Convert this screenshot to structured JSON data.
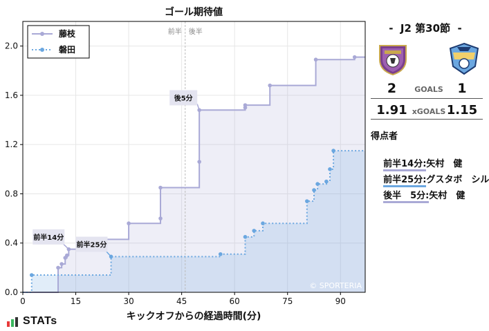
{
  "chart_data": {
    "type": "line",
    "title": "ゴール期待値",
    "xlabel": "キックオフからの経過時間(分)",
    "ylabel": "",
    "xlim": [
      0,
      97
    ],
    "ylim": [
      0,
      2.2
    ],
    "xticks": [
      0,
      15,
      30,
      45,
      60,
      75,
      90
    ],
    "yticks": [
      0.0,
      0.4,
      0.8,
      1.2,
      1.6,
      2.0
    ],
    "xtick_labels": [
      "0",
      "15",
      "30",
      "45",
      "60",
      "75",
      "90"
    ],
    "ytick_labels": [
      "0.0",
      "0.4",
      "0.8",
      "1.2",
      "1.6",
      "2.0"
    ],
    "grid": true,
    "legend_position": "top-left",
    "halftime_labels": {
      "first": "前半",
      "second": "後半",
      "x": 46
    },
    "watermark": "© SPORTERIA",
    "series": [
      {
        "name": "藤枝",
        "color": "#a9a9d6",
        "linestyle": "solid",
        "x": [
          0,
          10,
          11,
          12,
          12.5,
          13,
          21,
          30,
          39,
          39,
          50,
          50,
          63,
          63,
          70,
          83,
          94,
          97
        ],
        "y": [
          0,
          0.2,
          0.23,
          0.28,
          0.3,
          0.35,
          0.43,
          0.56,
          0.6,
          0.85,
          1.06,
          1.48,
          1.5,
          1.52,
          1.68,
          1.89,
          1.91,
          1.91
        ]
      },
      {
        "name": "磐田",
        "color": "#6ba7e0",
        "linestyle": "dotted",
        "x": [
          0,
          2.5,
          25,
          56,
          63,
          65.5,
          68,
          80.5,
          82.5,
          83.5,
          86,
          87,
          88,
          97
        ],
        "y": [
          0,
          0.14,
          0.29,
          0.31,
          0.45,
          0.5,
          0.56,
          0.74,
          0.83,
          0.88,
          0.9,
          1.0,
          1.15,
          1.15
        ]
      }
    ],
    "annotations": [
      {
        "label": "前半14分",
        "x": 13,
        "y": 0.35,
        "tx": 7.3,
        "ty": 0.45,
        "color": "#a9a9d6"
      },
      {
        "label": "前半25分",
        "x": 25,
        "y": 0.29,
        "tx": 19.5,
        "ty": 0.39,
        "color": "#6ba7e0"
      },
      {
        "label": "後5分",
        "x": 50,
        "y": 1.48,
        "tx": 45.5,
        "ty": 1.58,
        "color": "#a9a9d6"
      }
    ]
  },
  "match": {
    "title": "-  J2 第30節  -",
    "home": {
      "crest": "fujieda-crest-icon",
      "goals": "2",
      "xg": "1.91",
      "color": "#a9a9d6"
    },
    "away": {
      "crest": "iwata-crest-icon",
      "goals": "1",
      "xg": "1.15",
      "color": "#6ba7e0"
    },
    "goals_label": "GOALS",
    "xgoals_label": "xGOALS"
  },
  "scorers": {
    "title": "得点者",
    "items": [
      {
        "time": "前半14分:",
        "player": "矢村　健",
        "color": "#a9a9d6"
      },
      {
        "time": "前半25分:",
        "player": "グスタボ　シルバ",
        "color": "#6ba7e0"
      },
      {
        "time": "後半　5分:",
        "player": "矢村　健",
        "color": "#a9a9d6"
      }
    ]
  },
  "brand": {
    "name": "STATs",
    "icon": "bar-chart-icon",
    "colors": [
      "#e83a3a",
      "#3ab85e",
      "#333333"
    ]
  }
}
